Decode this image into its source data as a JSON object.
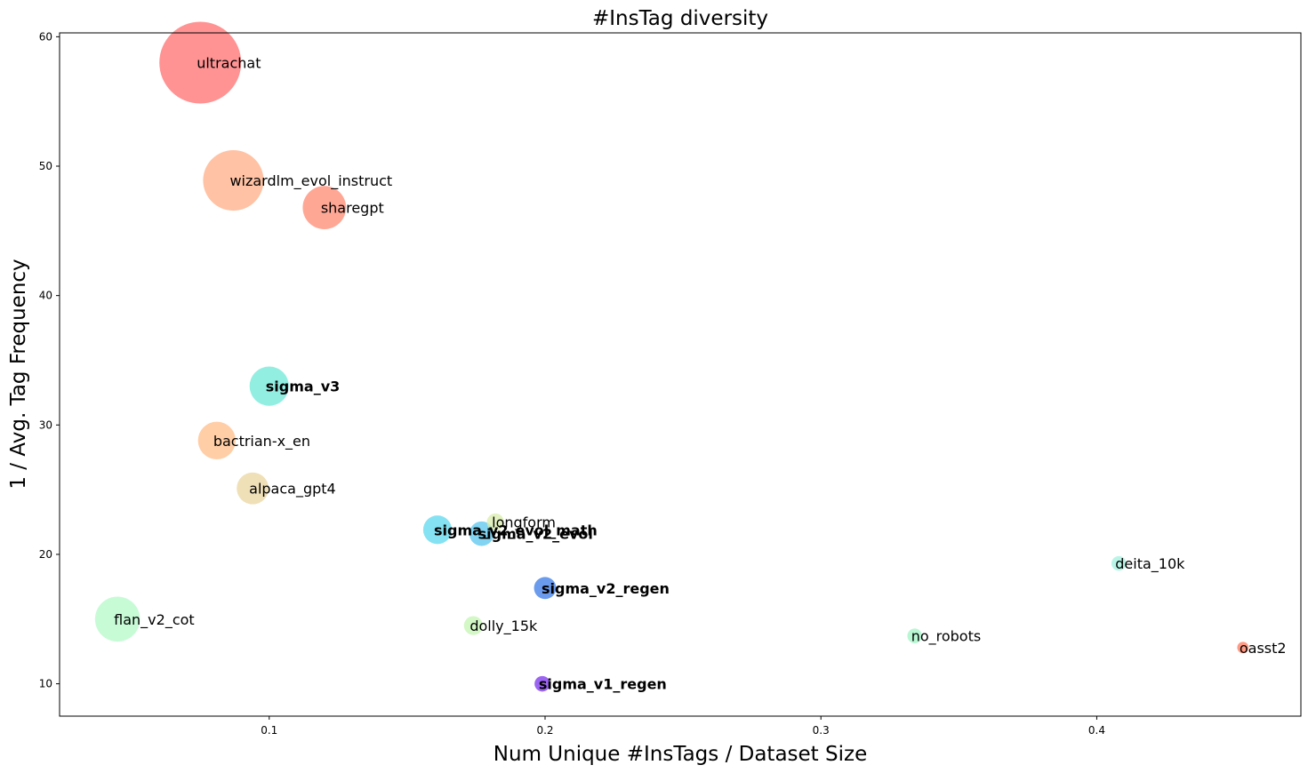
{
  "chart_data": {
    "type": "scatter",
    "title": "#InsTag diversity",
    "xlabel": "Num Unique #InsTags / Dataset Size",
    "ylabel": "1 / Avg. Tag Frequency",
    "xlim": [
      0.024,
      0.474
    ],
    "ylim": [
      7.5,
      60.3
    ],
    "xticks": [
      {
        "value": 0.1,
        "label": "0.1"
      },
      {
        "value": 0.2,
        "label": "0.2"
      },
      {
        "value": 0.3,
        "label": "0.3"
      },
      {
        "value": 0.4,
        "label": "0.4"
      }
    ],
    "yticks": [
      {
        "value": 10,
        "label": "10"
      },
      {
        "value": 20,
        "label": "20"
      },
      {
        "value": 30,
        "label": "30"
      },
      {
        "value": 40,
        "label": "40"
      },
      {
        "value": 50,
        "label": "50"
      },
      {
        "value": 60,
        "label": "60"
      }
    ],
    "grid": false,
    "legend": "none",
    "points": [
      {
        "label": "ultrachat",
        "x": 0.075,
        "y": 58.0,
        "size": 1.0,
        "color": "#ff6f6f",
        "bold": false
      },
      {
        "label": "wizardlm_evol_instruct",
        "x": 0.087,
        "y": 48.9,
        "size": 0.74,
        "color": "#ffad85",
        "bold": false
      },
      {
        "label": "sharegpt",
        "x": 0.12,
        "y": 46.8,
        "size": 0.53,
        "color": "#ff8a72",
        "bold": false
      },
      {
        "label": "sigma_v3",
        "x": 0.1,
        "y": 33.0,
        "size": 0.48,
        "color": "#6fe8d8",
        "bold": true
      },
      {
        "label": "bactrian-x_en",
        "x": 0.081,
        "y": 28.8,
        "size": 0.46,
        "color": "#ffbd8a",
        "bold": false
      },
      {
        "label": "alpaca_gpt4",
        "x": 0.094,
        "y": 25.1,
        "size": 0.39,
        "color": "#ead6a0",
        "bold": false
      },
      {
        "label": "longform",
        "x": 0.182,
        "y": 22.5,
        "size": 0.21,
        "color": "#d8ecaa",
        "bold": false
      },
      {
        "label": "sigma_v2_evol_math",
        "x": 0.161,
        "y": 21.9,
        "size": 0.35,
        "color": "#5cd8ee",
        "bold": true
      },
      {
        "label": "sigma_v2_evol",
        "x": 0.177,
        "y": 21.6,
        "size": 0.3,
        "color": "#58c6ee",
        "bold": true
      },
      {
        "label": "deita_10k",
        "x": 0.408,
        "y": 19.3,
        "size": 0.18,
        "color": "#a2f2de",
        "bold": false
      },
      {
        "label": "sigma_v2_regen",
        "x": 0.2,
        "y": 17.4,
        "size": 0.27,
        "color": "#3a7ae6",
        "bold": true
      },
      {
        "label": "flan_v2_cot",
        "x": 0.045,
        "y": 15.0,
        "size": 0.55,
        "color": "#b4fac8",
        "bold": false
      },
      {
        "label": "dolly_15k",
        "x": 0.174,
        "y": 14.5,
        "size": 0.23,
        "color": "#c4f4b2",
        "bold": false
      },
      {
        "label": "no_robots",
        "x": 0.334,
        "y": 13.7,
        "size": 0.18,
        "color": "#a2f4c6",
        "bold": false
      },
      {
        "label": "oasst2",
        "x": 0.453,
        "y": 12.8,
        "size": 0.14,
        "color": "#ff7a5c",
        "bold": false
      },
      {
        "label": "sigma_v1_regen",
        "x": 0.199,
        "y": 10.0,
        "size": 0.19,
        "color": "#7a32ee",
        "bold": true
      }
    ]
  }
}
